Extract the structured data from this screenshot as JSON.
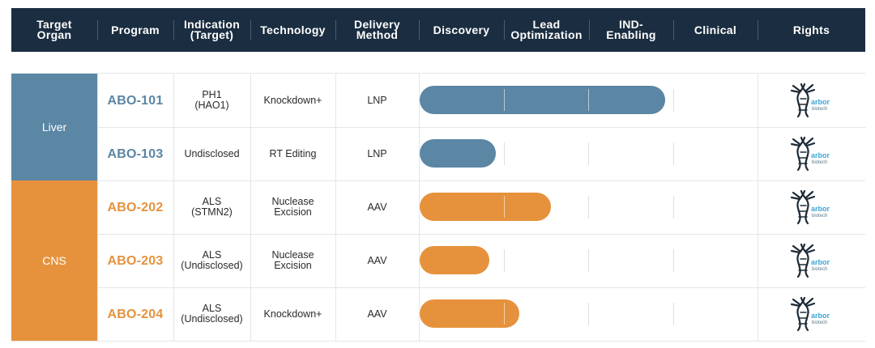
{
  "colors": {
    "header_bg": "#1b2d40",
    "liver": "#5b86a4",
    "cns": "#e6923d"
  },
  "headers": [
    "Target Organ",
    "Program",
    "Indication (Target)",
    "Technology",
    "Delivery Method",
    "Discovery",
    "Lead Optimization",
    "IND-Enabling",
    "Clinical",
    "Rights"
  ],
  "header_lines": [
    [
      "Target",
      "Organ"
    ],
    [
      "Program"
    ],
    [
      "Indication",
      "(Target)"
    ],
    [
      "Technology"
    ],
    [
      "Delivery",
      "Method"
    ],
    [
      "Discovery"
    ],
    [
      "Lead",
      "Optimization"
    ],
    [
      "IND-",
      "Enabling"
    ],
    [
      "Clinical"
    ],
    [
      "Rights"
    ]
  ],
  "organs": [
    {
      "label": "Liver",
      "color": "#5b86a4",
      "rows": 2
    },
    {
      "label": "CNS",
      "color": "#e6923d",
      "rows": 3
    }
  ],
  "logo": {
    "text": "arbor",
    "subtext": "biotech",
    "icon": "dna-tree-logo"
  },
  "chart_data": {
    "type": "bar",
    "orientation": "horizontal",
    "phases": [
      "Discovery",
      "Lead Optimization",
      "IND-Enabling",
      "Clinical"
    ],
    "xlim": [
      0,
      4
    ],
    "categories": [
      "ABO-101",
      "ABO-103",
      "ABO-202",
      "ABO-203",
      "ABO-204"
    ],
    "values": [
      2.9,
      0.9,
      1.55,
      0.82,
      1.18
    ],
    "rows": [
      {
        "program": "ABO-101",
        "organ": "Liver",
        "indication": [
          "PH1",
          "(HAO1)"
        ],
        "technology": [
          "Knockdown+"
        ],
        "delivery": "LNP",
        "progress": 2.9,
        "color": "#5b86a4"
      },
      {
        "program": "ABO-103",
        "organ": "Liver",
        "indication": [
          "Undisclosed"
        ],
        "technology": [
          "RT Editing"
        ],
        "delivery": "LNP",
        "progress": 0.9,
        "color": "#5b86a4"
      },
      {
        "program": "ABO-202",
        "organ": "CNS",
        "indication": [
          "ALS",
          "(STMN2)"
        ],
        "technology": [
          "Nuclease",
          "Excision"
        ],
        "delivery": "AAV",
        "progress": 1.55,
        "color": "#e6923d"
      },
      {
        "program": "ABO-203",
        "organ": "CNS",
        "indication": [
          "ALS",
          "(Undisclosed)"
        ],
        "technology": [
          "Nuclease",
          "Excision"
        ],
        "delivery": "AAV",
        "progress": 0.82,
        "color": "#e6923d"
      },
      {
        "program": "ABO-204",
        "organ": "CNS",
        "indication": [
          "ALS",
          "(Undisclosed)"
        ],
        "technology": [
          "Knockdown+"
        ],
        "delivery": "AAV",
        "progress": 1.18,
        "color": "#e6923d"
      }
    ]
  }
}
